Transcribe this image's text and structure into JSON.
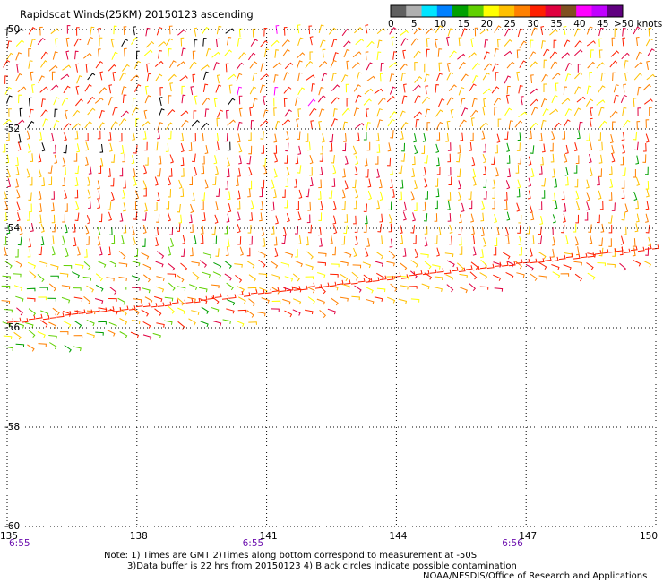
{
  "title": "Rapidscat Winds(25KM) 20150123 ascending",
  "legend": {
    "colors": [
      "#606060",
      "#b0b0b0",
      "#00e5ff",
      "#0080ff",
      "#00a000",
      "#60d000",
      "#ffff00",
      "#ffc000",
      "#ff8000",
      "#ff2000",
      "#e00040",
      "#805020",
      "#ff00ff",
      "#c000ff",
      "#600080"
    ],
    "labels": [
      "0",
      "5",
      "10",
      "15",
      "20",
      "25",
      "30",
      "35",
      "40",
      "45",
      ">50 knots"
    ]
  },
  "map": {
    "lon_min": 135,
    "lon_max": 150,
    "lat_min": -60,
    "lat_max": -50,
    "lat_labels": [
      "-50",
      "-52",
      "-54",
      "-56",
      "-58",
      "-60"
    ],
    "lon_labels": [
      "135",
      "138",
      "141",
      "144",
      "147",
      "150"
    ],
    "time_labels": [
      {
        "lon": 135,
        "text": "6:55"
      },
      {
        "lon": 140.4,
        "text": "6:55"
      },
      {
        "lon": 146.4,
        "text": "6:56"
      }
    ],
    "swath": {
      "lat_west_top": -50,
      "lat_west_bottom": -56.5,
      "lat_east_top": -50,
      "lat_east_bottom": -54.7
    }
  },
  "notes": [
    "Note: 1) Times are GMT 2)Times along bottom correspond to measurement at -50S",
    "3)Data buffer is 22 hrs from 20150123 4) Black circles indicate possible contamination",
    "NOAA/NESDIS/Office of Research and Applications"
  ]
}
